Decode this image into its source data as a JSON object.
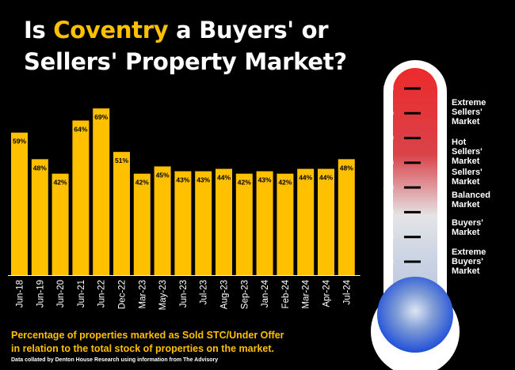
{
  "title": {
    "part1": "Is ",
    "highlight": "Coventry",
    "part2": " a Buyers' or",
    "line2": "Sellers' Property Market?"
  },
  "caption": {
    "line1": "Percentage of properties marked as Sold STC/Under Offer",
    "line2": "in relation to the total stock of properties on the market."
  },
  "source": "Data collated by Denton House Research using information from The Advisory",
  "colors": {
    "bar": "#FFC000",
    "accent": "#FFC000",
    "thermo_top": "#e8282a",
    "thermo_bottom": "#1f4fd8",
    "thermo_mid": "#dcdcdc"
  },
  "chart_data": {
    "type": "bar",
    "categories": [
      "Jun-18",
      "Jun-19",
      "Jun-20",
      "Jun-21",
      "Jun-22",
      "Dec-22",
      "Mar-23",
      "May-23",
      "Jun-23",
      "Jul-23",
      "Aug-23",
      "Sep-23",
      "Jan-24",
      "Feb-24",
      "Mar-24",
      "Apr-24",
      "Jul-24"
    ],
    "values": [
      59,
      48,
      42,
      64,
      69,
      51,
      42,
      45,
      43,
      43,
      44,
      42,
      43,
      42,
      44,
      44,
      48
    ],
    "value_labels": [
      "59%",
      "48%",
      "42%",
      "64%",
      "69%",
      "51%",
      "42%",
      "45%",
      "43%",
      "43%",
      "44%",
      "42%",
      "43%",
      "42%",
      "44%",
      "44%",
      "48%"
    ],
    "ylim": [
      0,
      72
    ],
    "grid": false,
    "title": "",
    "xlabel": "",
    "ylabel": ""
  },
  "thermometer": {
    "ticks": [
      "80",
      "70",
      "60",
      "50",
      "40",
      "30",
      "20",
      "10"
    ],
    "tick_values": [
      80,
      70,
      60,
      50,
      40,
      30,
      20,
      10
    ],
    "labels": [
      {
        "lines": [
          "Extreme",
          "Sellers'",
          "Market"
        ]
      },
      {
        "lines": [
          "Hot",
          "Sellers'",
          "Market"
        ]
      },
      {
        "lines": [
          "Sellers'",
          "Market"
        ]
      },
      {
        "lines": [
          "Balanced",
          "Market"
        ]
      },
      {
        "lines": [
          "Buyers'",
          "Market"
        ]
      },
      {
        "lines": [
          "Extreme",
          "Buyers'",
          "Market"
        ]
      }
    ]
  }
}
